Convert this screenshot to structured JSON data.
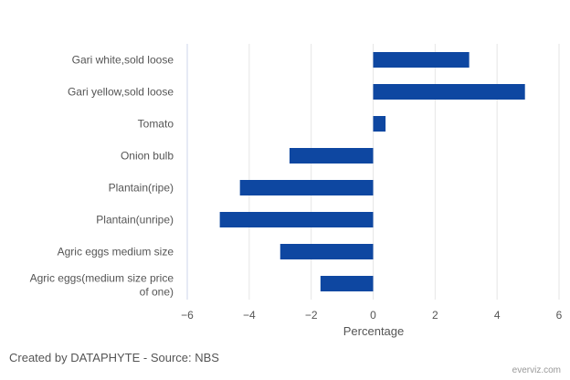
{
  "chart_data": {
    "type": "bar",
    "orientation": "horizontal",
    "categories": [
      "Gari white,sold loose",
      "Gari yellow,sold loose",
      "Tomato",
      "Onion bulb",
      "Plantain(ripe)",
      "Plantain(unripe)",
      "Agric eggs medium size",
      "Agric eggs(medium size price of one)"
    ],
    "values": [
      3.1,
      4.9,
      0.4,
      -2.7,
      -4.3,
      -4.95,
      -3.0,
      -1.7
    ],
    "xlabel": "Percentage",
    "xlim": [
      -6,
      6
    ],
    "xticks": [
      -6,
      -4,
      -2,
      0,
      2,
      4,
      6
    ],
    "grid": true,
    "bar_color": "#0e47a1"
  },
  "footer": {
    "credit": "Created by DATAPHYTE - Source: NBS",
    "brand": "everviz.com"
  },
  "colors": {
    "bar": "#0e47a1",
    "grid": "#e6e6e6",
    "text": "#555555"
  }
}
